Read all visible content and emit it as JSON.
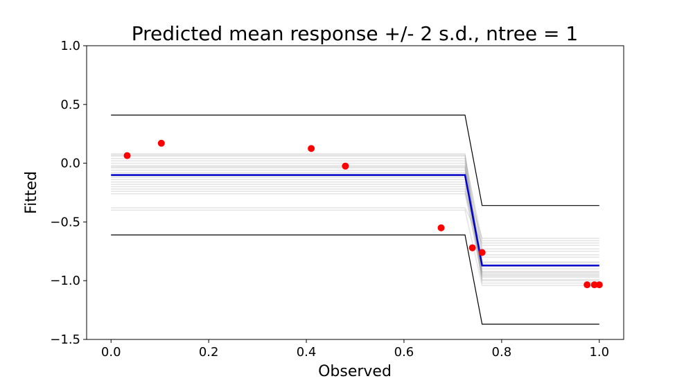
{
  "chart_data": {
    "type": "line",
    "title": "Predicted mean response +/- 2 s.d., ntree = 1",
    "xlabel": "Observed",
    "ylabel": "Fitted",
    "xlim": [
      -0.05,
      1.05
    ],
    "ylim": [
      -1.5,
      1.0
    ],
    "xticks": [
      0.0,
      0.2,
      0.4,
      0.6,
      0.8,
      1.0
    ],
    "xtick_labels": [
      "0.0",
      "0.2",
      "0.4",
      "0.6",
      "0.8",
      "1.0"
    ],
    "yticks": [
      1.0,
      0.5,
      0.0,
      -0.5,
      -1.0,
      -1.5
    ],
    "ytick_labels": [
      "1.0",
      "0.5",
      "0.0",
      "−0.5",
      "−1.0",
      "−1.5"
    ],
    "grid": false,
    "legend": "none",
    "colors": {
      "mean": "#0000cc",
      "bounds": "#000000",
      "samples": "#808080",
      "points": "#ff0000"
    },
    "step_x": [
      0.0,
      0.725,
      0.76,
      1.0
    ],
    "mean_series": {
      "y": [
        -0.1,
        -0.1,
        -0.87,
        -0.87
      ]
    },
    "upper_series": {
      "y": [
        0.41,
        0.41,
        -0.36,
        -0.36
      ]
    },
    "lower_series": {
      "y": [
        -0.61,
        -0.61,
        -1.37,
        -1.37
      ]
    },
    "sample_series": [
      {
        "y": [
          0.08,
          0.08,
          -0.96,
          -0.96
        ]
      },
      {
        "y": [
          0.06,
          0.06,
          -0.93,
          -0.93
        ]
      },
      {
        "y": [
          0.04,
          0.04,
          -0.66,
          -0.66
        ]
      },
      {
        "y": [
          0.02,
          0.02,
          -0.99,
          -0.99
        ]
      },
      {
        "y": [
          0.0,
          0.0,
          -0.9,
          -0.9
        ]
      },
      {
        "y": [
          -0.02,
          -0.02,
          -0.7,
          -0.7
        ]
      },
      {
        "y": [
          -0.04,
          -0.04,
          -1.02,
          -1.02
        ]
      },
      {
        "y": [
          -0.06,
          -0.06,
          -0.8,
          -0.8
        ]
      },
      {
        "y": [
          -0.08,
          -0.08,
          -0.94,
          -0.94
        ]
      },
      {
        "y": [
          -0.12,
          -0.12,
          -0.85,
          -0.85
        ]
      },
      {
        "y": [
          -0.14,
          -0.14,
          -0.73,
          -0.73
        ]
      },
      {
        "y": [
          -0.16,
          -0.16,
          -0.97,
          -0.97
        ]
      },
      {
        "y": [
          -0.18,
          -0.18,
          -0.64,
          -0.64
        ]
      },
      {
        "y": [
          -0.2,
          -0.2,
          -0.88,
          -0.88
        ]
      },
      {
        "y": [
          -0.22,
          -0.22,
          -1.0,
          -1.0
        ]
      },
      {
        "y": [
          -0.24,
          -0.24,
          -0.78,
          -0.78
        ]
      },
      {
        "y": [
          -0.26,
          -0.26,
          -0.92,
          -0.92
        ]
      },
      {
        "y": [
          -0.38,
          -0.38,
          -0.68,
          -0.68
        ]
      },
      {
        "y": [
          -0.4,
          -0.4,
          -1.04,
          -1.04
        ]
      },
      {
        "y": [
          -0.03,
          -0.03,
          -0.84,
          -0.84
        ]
      },
      {
        "y": [
          0.07,
          0.07,
          -0.75,
          -0.75
        ]
      },
      {
        "y": [
          -0.11,
          -0.11,
          -0.95,
          -0.95
        ]
      }
    ],
    "points": {
      "x": [
        0.033,
        0.103,
        0.41,
        0.48,
        0.676,
        0.74,
        0.76,
        0.975,
        0.99,
        1.0
      ],
      "y": [
        0.065,
        0.17,
        0.125,
        -0.025,
        -0.55,
        -0.72,
        -0.76,
        -1.035,
        -1.035,
        -1.035
      ]
    }
  }
}
